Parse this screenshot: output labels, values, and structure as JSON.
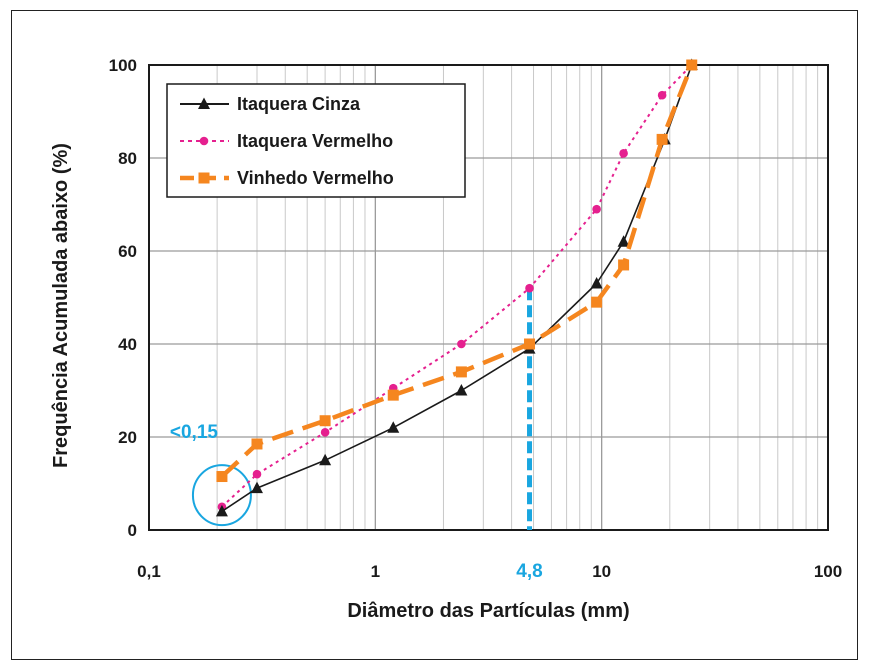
{
  "chart_data": {
    "type": "line",
    "xscale": "log",
    "xlim": [
      0.1,
      100
    ],
    "ylim": [
      0,
      100
    ],
    "xlabel": "Diâmetro  das Partículas (mm)",
    "ylabel": "Frequência Acumulada abaixo (%)",
    "xticks": [
      {
        "value": 0.1,
        "label": "0,1"
      },
      {
        "value": 1,
        "label": "1"
      },
      {
        "value": 10,
        "label": "10"
      },
      {
        "value": 100,
        "label": "100"
      }
    ],
    "yticks": [
      0,
      20,
      40,
      60,
      80,
      100
    ],
    "grid": true,
    "legend_position": "top-left",
    "series": [
      {
        "name": "Itaquera Cinza",
        "color": "#1a1a1a",
        "marker": "triangle",
        "line": "solid",
        "x": [
          0.21,
          0.3,
          0.6,
          1.2,
          2.4,
          4.8,
          9.5,
          12.5,
          19,
          25
        ],
        "y": [
          4,
          9,
          15,
          22,
          30,
          39,
          53,
          62,
          84,
          100
        ]
      },
      {
        "name": "Itaquera Vermelho",
        "color": "#e5208f",
        "marker": "circle",
        "line": "dotted",
        "x": [
          0.21,
          0.3,
          0.6,
          1.2,
          2.4,
          4.8,
          9.5,
          12.5,
          18.5,
          25
        ],
        "y": [
          5,
          12,
          21,
          30.5,
          40,
          52,
          69,
          81,
          93.5,
          100
        ]
      },
      {
        "name": "Vinhedo Vermelho",
        "color": "#f5861f",
        "marker": "square",
        "line": "dashed",
        "x": [
          0.21,
          0.3,
          0.6,
          1.2,
          2.4,
          4.8,
          9.5,
          12.5,
          18.5,
          25
        ],
        "y": [
          11.5,
          18.5,
          23.5,
          29,
          34,
          40,
          49,
          57,
          84,
          100
        ]
      }
    ],
    "annotations": [
      {
        "text": "<0,15",
        "color": "#19a6e0",
        "x": 0.21,
        "y": 11
      },
      {
        "text": "4,8",
        "color": "#19a6e0",
        "x": 4.8,
        "y": 52
      }
    ]
  }
}
